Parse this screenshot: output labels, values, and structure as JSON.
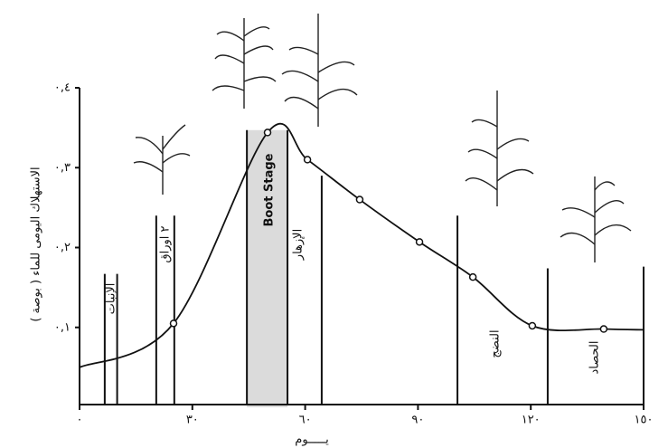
{
  "chart_data": {
    "type": "line",
    "y_label": "الاستهلاك اليومى للماء ( بوصة )",
    "x_label": "يـــــوم",
    "x": [
      0,
      25,
      50,
      60.6,
      74.5,
      90.4,
      104.6,
      120.4,
      139.4,
      150
    ],
    "values": [
      0.05,
      0.105,
      0.344,
      0.31,
      0.26,
      0.207,
      0.163,
      0.102,
      0.098,
      0.097
    ],
    "color": "#111111",
    "xlim": [
      0,
      150
    ],
    "ylim": [
      0,
      0.4
    ],
    "xticks": [
      {
        "value": 0,
        "label": "٠"
      },
      {
        "value": 30,
        "label": "٣٠"
      },
      {
        "value": 60,
        "label": "٦٠"
      },
      {
        "value": 90,
        "label": "٩٠"
      },
      {
        "value": 120,
        "label": "١٢٠"
      },
      {
        "value": 150,
        "label": "١٥٠"
      }
    ],
    "yticks": [
      {
        "value": 0.1,
        "label": "٠,١"
      },
      {
        "value": 0.2,
        "label": "٠,٢"
      },
      {
        "value": 0.3,
        "label": "٠,٣"
      },
      {
        "value": 0.4,
        "label": "٠,٤"
      }
    ],
    "stage_lines": [
      {
        "x": 6.7,
        "y": 0.167
      },
      {
        "x": 10,
        "y": 0.167
      },
      {
        "x": 20.4,
        "y": 0.24
      },
      {
        "x": 25.2,
        "y": 0.24
      },
      {
        "x": 44.5,
        "y": 0.347
      },
      {
        "x": 55.3,
        "y": 0.347
      },
      {
        "x": 64.4,
        "y": 0.29
      },
      {
        "x": 100.5,
        "y": 0.24
      },
      {
        "x": 124.5,
        "y": 0.174
      },
      {
        "x": 150,
        "y": 0.176
      }
    ],
    "shaded": [
      44.5,
      55.3
    ],
    "annotations": [
      "الإنبات",
      "٢ اوراق",
      "Boot Stage",
      "الإزهار",
      "النضج",
      "الحصاد"
    ]
  }
}
